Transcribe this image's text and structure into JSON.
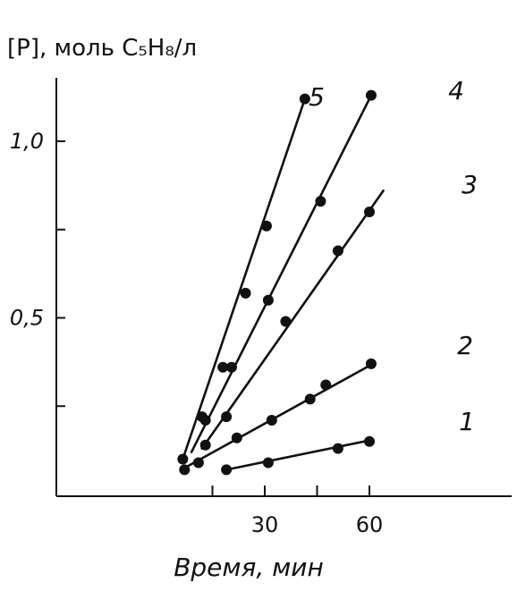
{
  "chart_data": {
    "type": "line",
    "ylabel": "[P], моль C₅H₈/л",
    "xlabel": "Время, мин",
    "xlim": [
      -5,
      70
    ],
    "ylim": [
      0,
      1.2
    ],
    "x_ticks": [
      {
        "value": 30,
        "label": "30"
      },
      {
        "value": 60,
        "label": "60"
      }
    ],
    "x_minor_ticks": [
      15,
      45
    ],
    "y_ticks": [
      {
        "value": 0.5,
        "label": "0,5"
      },
      {
        "value": 1.0,
        "label": "1,0"
      }
    ],
    "y_minor_ticks": [
      0.25,
      0.75
    ],
    "grid": false,
    "series": [
      {
        "name": "1",
        "points": [
          [
            19,
            0.07
          ],
          [
            31,
            0.09
          ],
          [
            51,
            0.13
          ],
          [
            60,
            0.15
          ]
        ],
        "line": [
          [
            19,
            0.07
          ],
          [
            61,
            0.155
          ]
        ]
      },
      {
        "name": "2",
        "points": [
          [
            7,
            0.07
          ],
          [
            11,
            0.09
          ],
          [
            22,
            0.16
          ],
          [
            32,
            0.21
          ],
          [
            43,
            0.27
          ],
          [
            47.5,
            0.31
          ],
          [
            60.5,
            0.37
          ]
        ],
        "line": [
          [
            7,
            0.075
          ],
          [
            61,
            0.37
          ]
        ]
      },
      {
        "name": "3",
        "points": [
          [
            13,
            0.14
          ],
          [
            19,
            0.22
          ],
          [
            36,
            0.49
          ],
          [
            51,
            0.69
          ],
          [
            60,
            0.8
          ]
        ],
        "line": [
          [
            12,
            0.13
          ],
          [
            64,
            0.86
          ]
        ]
      },
      {
        "name": "4",
        "points": [
          [
            13,
            0.21
          ],
          [
            20.5,
            0.36
          ],
          [
            31,
            0.55
          ],
          [
            46,
            0.83
          ],
          [
            60.5,
            1.13
          ]
        ],
        "line": [
          [
            9,
            0.12
          ],
          [
            60.5,
            1.13
          ]
        ]
      },
      {
        "name": "5",
        "points": [
          [
            6.5,
            0.1
          ],
          [
            12,
            0.22
          ],
          [
            18,
            0.36
          ],
          [
            24.5,
            0.57
          ],
          [
            30.5,
            0.76
          ],
          [
            41.5,
            1.12
          ]
        ],
        "line": [
          [
            6.5,
            0.1
          ],
          [
            41.5,
            1.12
          ]
        ]
      }
    ]
  }
}
